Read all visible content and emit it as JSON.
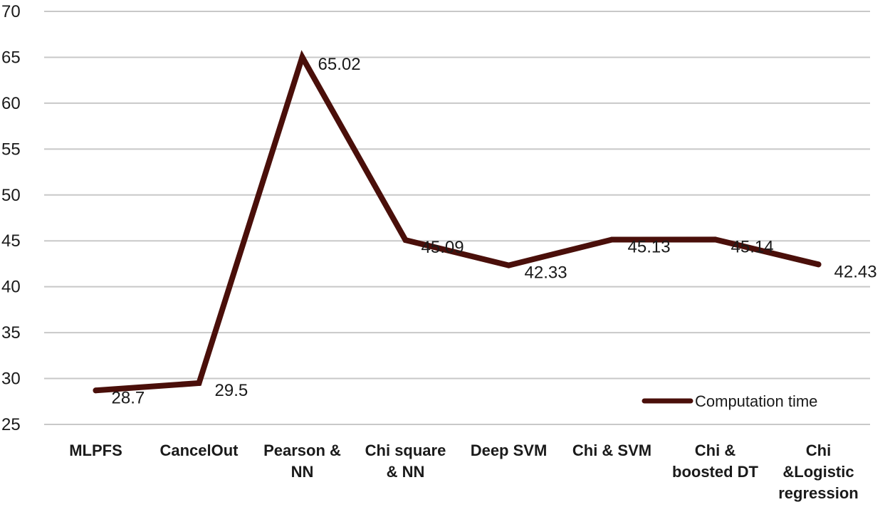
{
  "chart_data": {
    "type": "line",
    "categories": [
      [
        "MLPFS"
      ],
      [
        "CancelOut"
      ],
      [
        "Pearson &",
        "NN"
      ],
      [
        "Chi square",
        "& NN"
      ],
      [
        "Deep SVM"
      ],
      [
        "Chi & SVM"
      ],
      [
        "Chi &",
        "boosted DT"
      ],
      [
        "Chi",
        "&Logistic",
        "regression"
      ]
    ],
    "series": [
      {
        "name": "Computation time",
        "values": [
          28.7,
          29.5,
          65.02,
          45.09,
          42.33,
          45.13,
          45.14,
          42.43
        ],
        "labels": [
          "28.7",
          "29.5",
          "65.02",
          "45.09",
          "42.33",
          "45.13",
          "45.14",
          "42.43"
        ],
        "color": "#4a0f0a"
      }
    ],
    "ylim": [
      25,
      70
    ],
    "yticks": [
      25,
      30,
      35,
      40,
      45,
      50,
      55,
      60,
      65,
      70
    ],
    "grid": true,
    "legend_position": "bottom-right",
    "xlabel": "",
    "ylabel": "",
    "title": ""
  }
}
